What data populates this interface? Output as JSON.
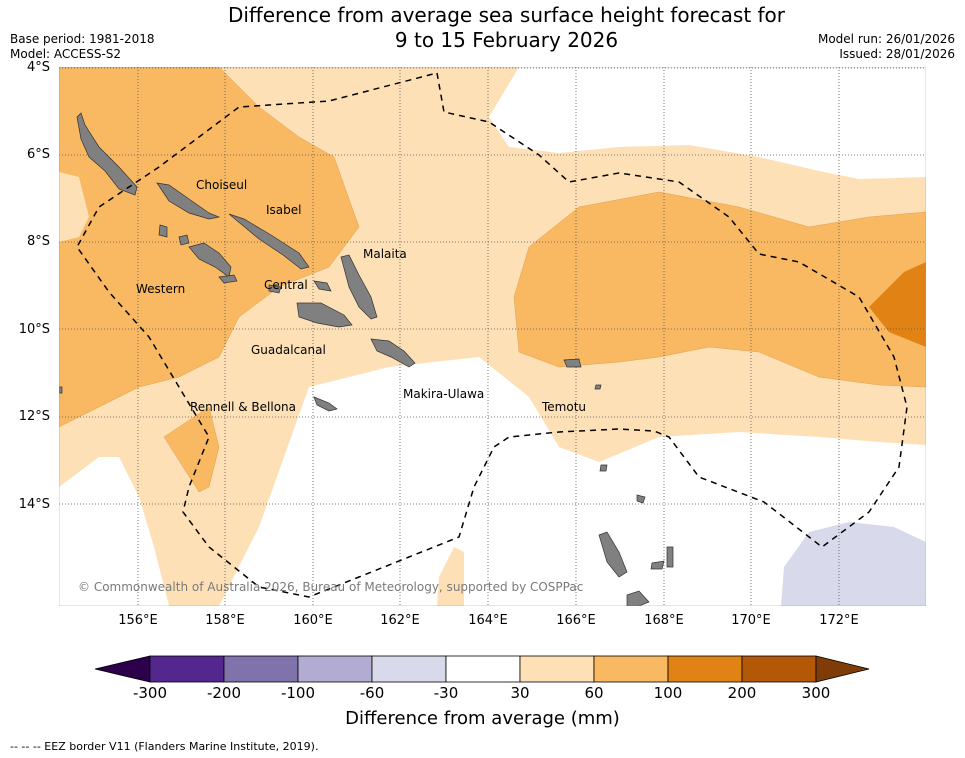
{
  "title_line1": "Difference from average sea surface height forecast for",
  "title_line2": "9 to 15 February 2026",
  "base_period": "Base period: 1981-2018",
  "model": "Model: ACCESS-S2",
  "model_run": "Model run: 26/01/2026",
  "issued": "Issued: 28/01/2026",
  "lat_labels": [
    "4°S",
    "6°S",
    "8°S",
    "10°S",
    "12°S",
    "14°S"
  ],
  "lon_labels": [
    "156°E",
    "158°E",
    "160°E",
    "162°E",
    "164°E",
    "166°E",
    "168°E",
    "170°E",
    "172°E"
  ],
  "regions": [
    "Choiseul",
    "Isabel",
    "Malaita",
    "Western",
    "Central",
    "Guadalcanal",
    "Makira-Ulawa",
    "Rennell & Bellona",
    "Temotu"
  ],
  "copyright": "© Commonwealth of Australia 2026, Bureau of Meteorology, supported by COSPPac",
  "colorbar": {
    "ticks": [
      "-300",
      "-200",
      "-100",
      "-60",
      "-30",
      "30",
      "60",
      "100",
      "200",
      "300"
    ],
    "colors": [
      "#54278f",
      "#8073ac",
      "#b2abd2",
      "#d8daeb",
      "#ffffff",
      "#fee0b6",
      "#f9b862",
      "#e08214",
      "#b35806"
    ],
    "extend_low_color": "#2d004b",
    "extend_high_color": "#7f3b08",
    "label": "Difference from average (mm)"
  },
  "footnote": "--  --  -- EEZ border V11 (Flanders Marine Institute, 2019)."
}
